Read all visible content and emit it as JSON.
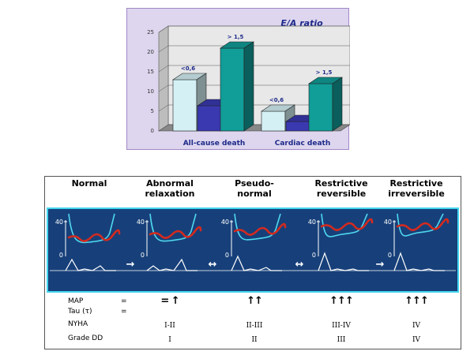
{
  "chart_data": {
    "type": "bar",
    "title": "E/A ratio",
    "categories": [
      "All-cause death",
      "Cardiac death"
    ],
    "series": [
      {
        "values": [
          13,
          5
        ],
        "color": "#d4f0f4",
        "bar_label": "<0,6"
      },
      {
        "values": [
          7,
          3
        ],
        "color": "#3a39b0",
        "bar_label": ""
      },
      {
        "values": [
          21,
          12
        ],
        "color": "#119d98",
        "bar_label": "> 1,5"
      }
    ],
    "yticks": [
      "0",
      "5",
      "10",
      "15",
      "20",
      "25"
    ],
    "ylim": [
      0,
      25
    ],
    "grid": true
  },
  "diagram": {
    "stages": [
      {
        "title": "Normal",
        "map": "",
        "nyha": "",
        "grade": ""
      },
      {
        "title": "Abnormal\nrelaxation",
        "map": "= ↑",
        "nyha": "I-II",
        "grade": "I"
      },
      {
        "title": "Pseudo-\nnormal",
        "map": "↑↑",
        "nyha": "II-III",
        "grade": "II"
      },
      {
        "title": "Restrictive\nreversible",
        "map": "↑↑↑",
        "nyha": "III-IV",
        "grade": "III"
      },
      {
        "title": "Restrictive\nirreversible",
        "map": "↑↑↑",
        "nyha": "IV",
        "grade": "IV"
      }
    ],
    "axis_high": "40",
    "axis_low": "0",
    "transitions": [
      "→",
      "↔",
      "↔",
      "→"
    ],
    "rows": {
      "map_label": "MAP",
      "tau_label": "Tau (τ)",
      "nyha_label": "NYHA",
      "grade_label": "Grade DD",
      "equals": "="
    },
    "colors": {
      "ventricle": "#4fd8ee",
      "atrium": "#d42a1f",
      "flow": "#ffffff",
      "panel": "#17407a"
    }
  }
}
